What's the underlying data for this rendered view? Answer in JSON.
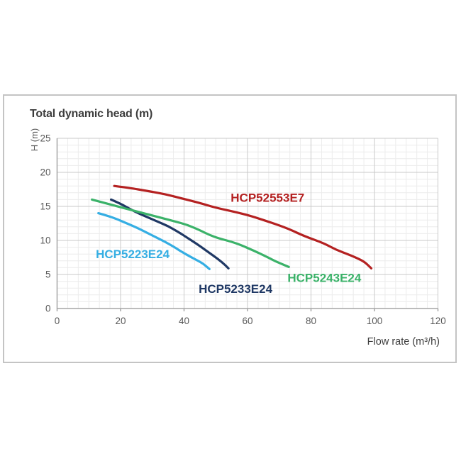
{
  "chart": {
    "title": "Total dynamic head (m)",
    "y_axis_unit": "H (m)",
    "x_axis_title": "Flow rate (m³/h)"
  },
  "colors": {
    "background": "#ffffff",
    "border": "#c4c4c4",
    "grid_minor": "#ececec",
    "grid_major": "#c9c9c9",
    "axis": "#a6a6a6",
    "tick_text": "#595959",
    "title_text": "#3d3d3d"
  },
  "chart_data": {
    "type": "line",
    "title": "Total dynamic head (m)",
    "xlabel": "Flow rate (m³/h)",
    "ylabel": "H (m)",
    "xlim": [
      0,
      120
    ],
    "ylim": [
      0,
      25
    ],
    "x_ticks": [
      0,
      20,
      40,
      60,
      80,
      100,
      120
    ],
    "y_ticks": [
      0,
      5,
      10,
      15,
      20,
      25
    ],
    "x_minor_per_major": 6,
    "y_minor_per_major": 5,
    "grid": true,
    "legend_position": "inline-labels",
    "series": [
      {
        "name": "HCP52553E7",
        "color": "#b42121",
        "label_pos": [
          54.7,
          15.7
        ],
        "points": [
          [
            18,
            18.0
          ],
          [
            23,
            17.7
          ],
          [
            28,
            17.3
          ],
          [
            34,
            16.8
          ],
          [
            39,
            16.2
          ],
          [
            45,
            15.5
          ],
          [
            50,
            14.8
          ],
          [
            56,
            14.2
          ],
          [
            61,
            13.6
          ],
          [
            67,
            12.7
          ],
          [
            73,
            11.7
          ],
          [
            78,
            10.6
          ],
          [
            84,
            9.6
          ],
          [
            88,
            8.6
          ],
          [
            92,
            7.9
          ],
          [
            95,
            7.3
          ],
          [
            97,
            6.8
          ],
          [
            99,
            5.9
          ]
        ]
      },
      {
        "name": "HCP5223E24",
        "color": "#35aee3",
        "label_pos": [
          12.2,
          7.4
        ],
        "points": [
          [
            13,
            14.0
          ],
          [
            16,
            13.6
          ],
          [
            19,
            13.1
          ],
          [
            22,
            12.5
          ],
          [
            25,
            11.9
          ],
          [
            28,
            11.2
          ],
          [
            31,
            10.5
          ],
          [
            34,
            9.8
          ],
          [
            37,
            9.0
          ],
          [
            39,
            8.4
          ],
          [
            42,
            7.6
          ],
          [
            44,
            7.1
          ],
          [
            46,
            6.6
          ],
          [
            48,
            5.8
          ]
        ]
      },
      {
        "name": "HCP5233E24",
        "color": "#1f3864",
        "label_pos": [
          44.6,
          2.3
        ],
        "points": [
          [
            17,
            16.0
          ],
          [
            20,
            15.4
          ],
          [
            23,
            14.6
          ],
          [
            26,
            13.9
          ],
          [
            29,
            13.3
          ],
          [
            32,
            12.7
          ],
          [
            35,
            12.1
          ],
          [
            38,
            11.3
          ],
          [
            41,
            10.4
          ],
          [
            44,
            9.5
          ],
          [
            47,
            8.5
          ],
          [
            50,
            7.5
          ],
          [
            52,
            6.8
          ],
          [
            54,
            5.9
          ]
        ]
      },
      {
        "name": "HCP5243E24",
        "color": "#3bb269",
        "label_pos": [
          72.6,
          3.9
        ],
        "points": [
          [
            11,
            16.0
          ],
          [
            15,
            15.5
          ],
          [
            19,
            15.0
          ],
          [
            24,
            14.4
          ],
          [
            28,
            13.9
          ],
          [
            33,
            13.3
          ],
          [
            37,
            12.8
          ],
          [
            41,
            12.3
          ],
          [
            45,
            11.5
          ],
          [
            48,
            10.8
          ],
          [
            51,
            10.3
          ],
          [
            55,
            9.8
          ],
          [
            58,
            9.3
          ],
          [
            62,
            8.5
          ],
          [
            66,
            7.6
          ],
          [
            69,
            6.9
          ],
          [
            71,
            6.5
          ],
          [
            73,
            6.1
          ]
        ]
      }
    ]
  }
}
